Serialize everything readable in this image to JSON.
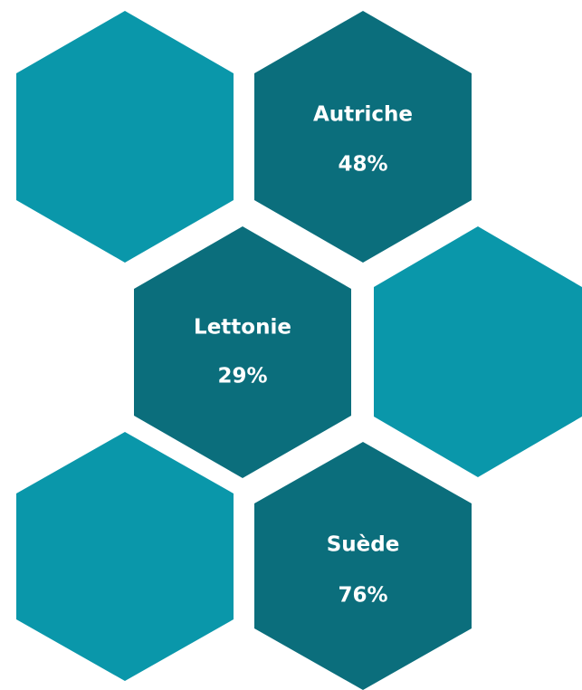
{
  "nodes": [
    {
      "label": "Autriche",
      "value": "48%"
    },
    {
      "label": "Lettonie",
      "value": "29%"
    },
    {
      "label": "Suède",
      "value": "76%"
    }
  ]
}
